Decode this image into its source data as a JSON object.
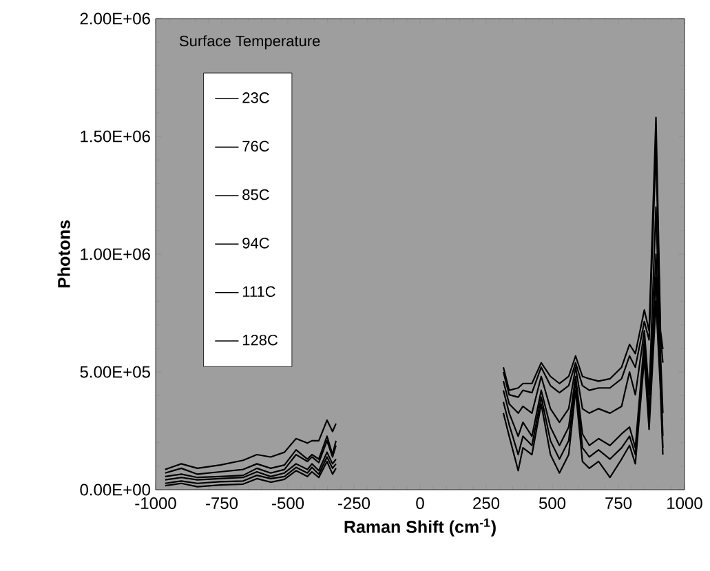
{
  "chart_data": {
    "type": "line",
    "xlabel": "Raman Shift (cm$^{-1}$)",
    "ylabel": "Photons",
    "legend_title": "Surface Temperature",
    "legend": "top left",
    "x": [
      -964,
      -903,
      -842,
      -756,
      -669,
      -617,
      -565,
      -513,
      -469,
      -426,
      -409,
      -383,
      -352,
      -331,
      -318,
      0,
      315,
      337,
      371,
      389,
      423,
      458,
      493,
      527,
      562,
      588,
      614,
      640,
      675,
      718,
      762,
      792,
      814,
      848,
      866,
      892,
      909,
      918
    ],
    "series": [
      {
        "name": "23C",
        "color": "#000000",
        "values": [
          86000,
          110000,
          91000,
          105000,
          125000,
          149000,
          139000,
          159000,
          217000,
          198000,
          208000,
          208000,
          295000,
          247000,
          281000,
          null,
          520000,
          422000,
          432000,
          451000,
          451000,
          539000,
          481000,
          451000,
          481000,
          568000,
          481000,
          471000,
          461000,
          471000,
          520000,
          617000,
          578000,
          763000,
          675000,
          1580000,
          675000,
          597000
        ]
      },
      {
        "name": "76C",
        "color": "#000000",
        "values": [
          71000,
          91000,
          66000,
          76000,
          86000,
          110000,
          91000,
          105000,
          169000,
          130000,
          149000,
          130000,
          227000,
          149000,
          208000,
          null,
          500000,
          403000,
          393000,
          422000,
          412000,
          520000,
          442000,
          412000,
          442000,
          539000,
          442000,
          422000,
          432000,
          432000,
          471000,
          568000,
          520000,
          714000,
          636000,
          1450000,
          656000,
          539000
        ]
      },
      {
        "name": "85C",
        "color": "#000000",
        "values": [
          56000,
          66000,
          52000,
          56000,
          61000,
          91000,
          71000,
          86000,
          149000,
          120000,
          139000,
          115000,
          208000,
          139000,
          188000,
          null,
          461000,
          364000,
          325000,
          354000,
          325000,
          481000,
          344000,
          286000,
          344000,
          520000,
          344000,
          325000,
          344000,
          325000,
          354000,
          500000,
          403000,
          675000,
          403000,
          1200000,
          578000,
          325000
        ]
      },
      {
        "name": "94C",
        "color": "#000000",
        "values": [
          42000,
          52000,
          42000,
          47000,
          52000,
          76000,
          56000,
          71000,
          110000,
          86000,
          110000,
          81000,
          159000,
          110000,
          130000,
          null,
          422000,
          325000,
          227000,
          286000,
          227000,
          422000,
          266000,
          188000,
          266000,
          481000,
          237000,
          188000,
          217000,
          188000,
          237000,
          266000,
          178000,
          636000,
          325000,
          1000000,
          520000,
          227000
        ]
      },
      {
        "name": "111C",
        "color": "#000000",
        "values": [
          27000,
          37000,
          27000,
          34000,
          37000,
          61000,
          47000,
          56000,
          95000,
          71000,
          95000,
          66000,
          139000,
          91000,
          110000,
          null,
          373000,
          276000,
          149000,
          227000,
          188000,
          393000,
          208000,
          130000,
          208000,
          461000,
          178000,
          139000,
          169000,
          130000,
          178000,
          227000,
          149000,
          597000,
          286000,
          900000,
          461000,
          178000
        ]
      },
      {
        "name": "128C",
        "color": "#000000",
        "values": [
          17000,
          27000,
          13000,
          20000,
          24000,
          47000,
          32000,
          44000,
          81000,
          56000,
          76000,
          52000,
          120000,
          66000,
          91000,
          null,
          325000,
          227000,
          81000,
          178000,
          149000,
          364000,
          149000,
          71000,
          149000,
          422000,
          120000,
          91000,
          120000,
          52000,
          130000,
          188000,
          110000,
          558000,
          256000,
          800000,
          422000,
          149000
        ]
      }
    ],
    "xlim": [
      -1000,
      1000
    ],
    "xticks": [
      -1000,
      -750,
      -500,
      -250,
      0,
      250,
      500,
      750,
      1000
    ],
    "ylim": [
      0,
      2000000
    ],
    "yticks": [
      {
        "value": 0,
        "label": "0.00E+00"
      },
      {
        "value": 500000,
        "label": "5.00E+05"
      },
      {
        "value": 1000000,
        "label": "1.00E+06"
      },
      {
        "value": 1500000,
        "label": "1.50E+06"
      },
      {
        "value": 2000000,
        "label": "2.00E+06"
      }
    ]
  }
}
